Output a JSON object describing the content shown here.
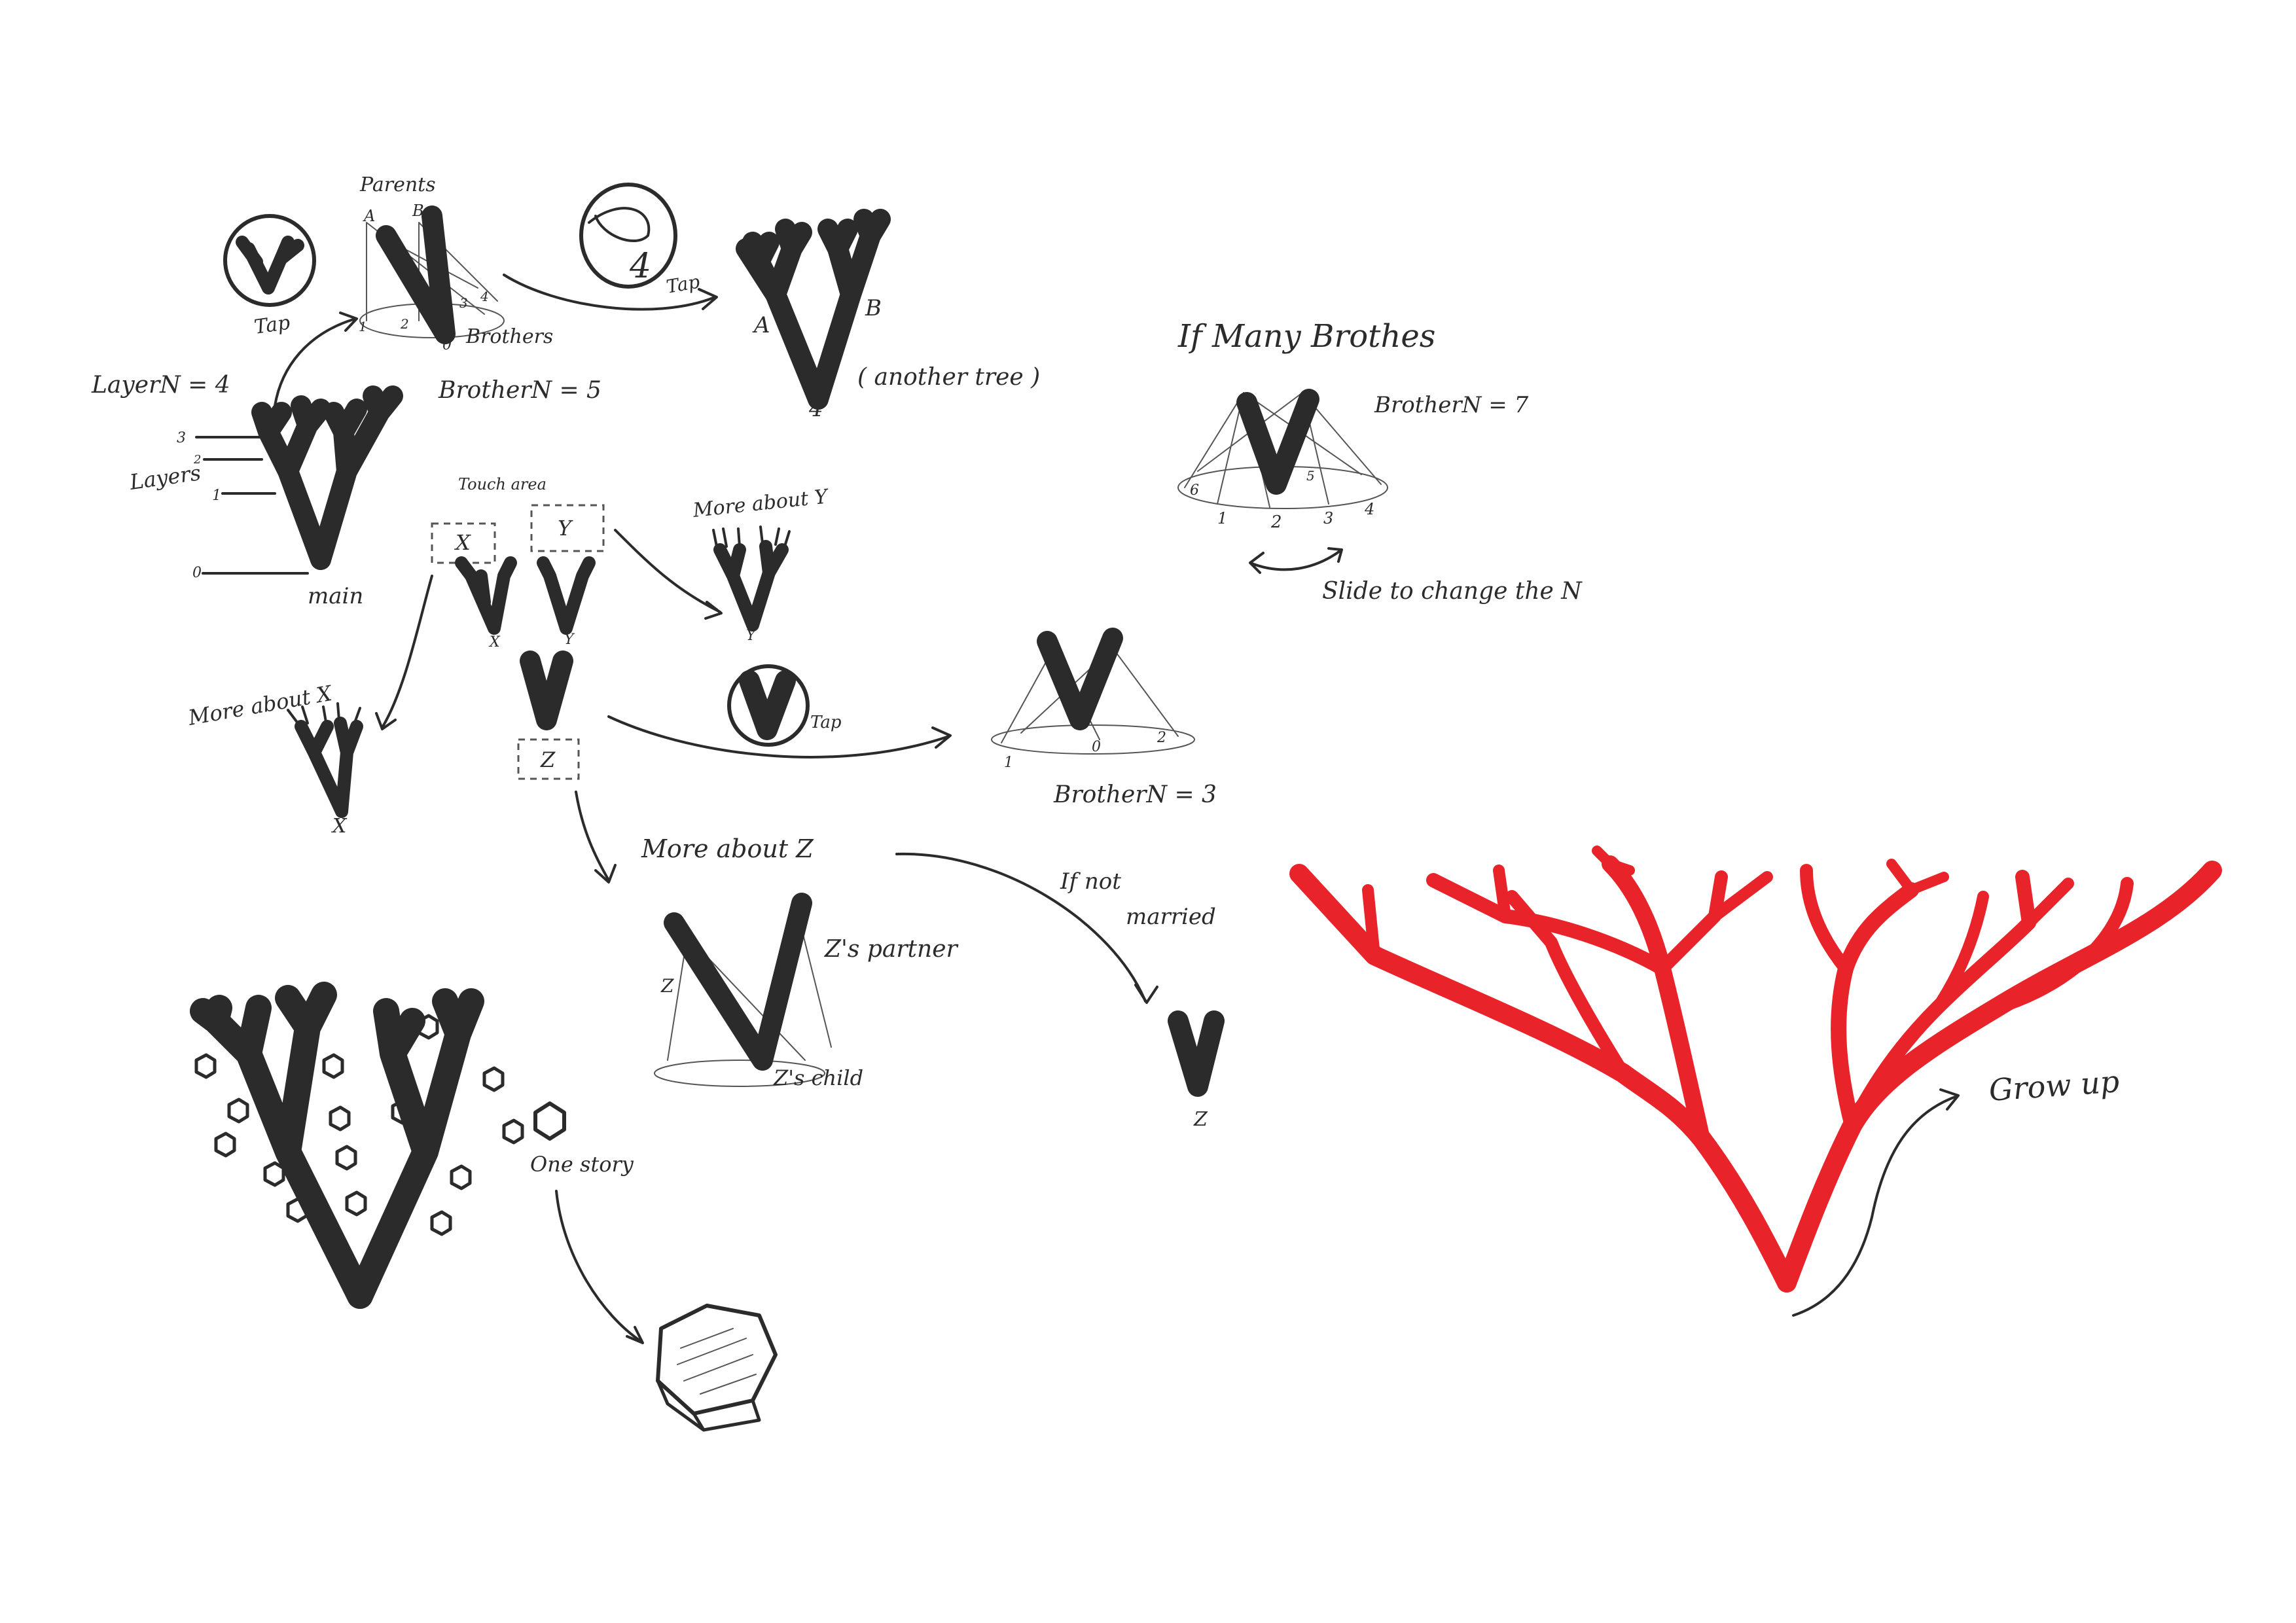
{
  "colors": {
    "ink": "#2b2b2b",
    "accent_red": "#e8232a"
  },
  "labels": {
    "parents": "Parents",
    "parent_a_small": "A",
    "parent_b_small": "B",
    "tap_1": "Tap",
    "tap_2": "Tap",
    "tap_3": "Tap",
    "brothers": "Brothers",
    "bro_ticks": [
      "1",
      "2",
      "0",
      "3",
      "4"
    ],
    "layer_n": "LayerN = 4",
    "brother_n_5": "BrotherN = 5",
    "badge_4": "4",
    "tree_a": "A",
    "tree_b": "B",
    "tree_4": "4",
    "another_tree": "( another  tree )",
    "if_many_brothers": "If  Many  Brothes",
    "brother_n_7": "BrotherN = 7",
    "many_ticks": [
      "6",
      "1",
      "2",
      "3",
      "4",
      "5"
    ],
    "slide_to_change": "Slide  to  change  the  N",
    "layer_ticks": [
      "3",
      "2",
      "1",
      "0"
    ],
    "layers": "Layers",
    "main": "main",
    "touch_area": "Touch area",
    "touch_x": "X",
    "touch_y": "Y",
    "child_x": "X",
    "child_y": "Y",
    "more_about_y": "More about Y",
    "more_about_y_child": "Y",
    "more_about_x": "More about X",
    "more_about_x_child": "X",
    "touch_z": "Z",
    "brother_n_3": "BrotherN = 3",
    "three_ticks": [
      "1",
      "0",
      "2"
    ],
    "more_about_z": "More  about  Z",
    "z_left": "Z",
    "z_partner": "Z's partner",
    "z_child": "Z's child",
    "if_not_married": "If not",
    "if_not_married_2": "married",
    "z_bottom": "Z",
    "one_story": "One story",
    "grow_up": "Grow up"
  }
}
